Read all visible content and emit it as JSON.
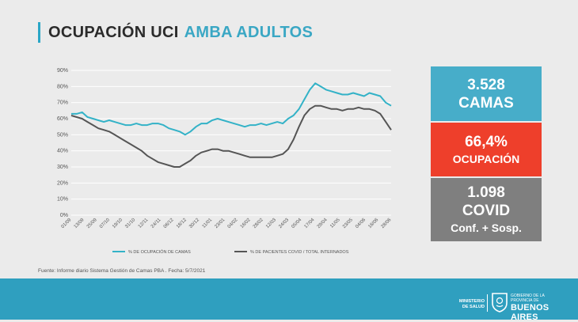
{
  "title": {
    "part1": "OCUPACIÓN UCI",
    "part2": "AMBA ADULTOS"
  },
  "stats": {
    "beds_value": "3.528",
    "beds_label": "CAMAS",
    "occupancy_value": "66,4%",
    "occupancy_label": "OCUPACIÓN",
    "covid_value": "1.098",
    "covid_label": "COVID",
    "covid_sub": "Conf. + Sosp."
  },
  "source": "Fuente: Informe diario Sistema Gestión de Camas PBA . Fecha: 5/7/2021",
  "footer": {
    "ministry": "MINISTERIO DE SALUD",
    "province_top": "GOBIERNO DE LA PROVINCIA DE",
    "province_main": "BUENOS AIRES"
  },
  "colors": {
    "camas": "#33b2c7",
    "covid": "#555555",
    "accent": "#3aa7c4",
    "red": "#ee3f2b",
    "grey_box": "#7f7f7f",
    "footer": "#2f9fbf"
  },
  "chart_data": {
    "type": "line",
    "ylim": [
      0,
      90
    ],
    "y_ticks": [
      "0%",
      "10%",
      "20%",
      "30%",
      "40%",
      "50%",
      "60%",
      "70%",
      "80%",
      "90%"
    ],
    "x_tick_labels": [
      "01/09",
      "13/09",
      "25/09",
      "07/10",
      "19/10",
      "31/10",
      "12/11",
      "24/11",
      "06/12",
      "18/12",
      "30/12",
      "11/01",
      "23/01",
      "04/02",
      "16/02",
      "28/02",
      "12/03",
      "24/03",
      "05/04",
      "17/04",
      "29/04",
      "11/05",
      "23/05",
      "04/06",
      "16/06",
      "28/06"
    ],
    "series": [
      {
        "name": "% DE OCUPACIÓN DE CAMAS",
        "values": [
          63,
          63,
          64,
          61,
          60,
          59,
          58,
          59,
          58,
          57,
          56,
          56,
          57,
          56,
          56,
          57,
          57,
          56,
          54,
          53,
          52,
          50,
          52,
          55,
          57,
          57,
          59,
          60,
          59,
          58,
          57,
          56,
          55,
          56,
          56,
          57,
          56,
          57,
          58,
          57,
          60,
          62,
          66,
          72,
          78,
          82,
          80,
          78,
          77,
          76,
          75,
          75,
          76,
          75,
          74,
          76,
          75,
          74,
          70,
          68
        ]
      },
      {
        "name": "% DE PACIENTES COVID / TOTAL INTERNADOS",
        "values": [
          62,
          61,
          60,
          58,
          56,
          54,
          53,
          52,
          50,
          48,
          46,
          44,
          42,
          40,
          37,
          35,
          33,
          32,
          31,
          30,
          30,
          32,
          34,
          37,
          39,
          40,
          41,
          41,
          40,
          40,
          39,
          38,
          37,
          36,
          36,
          36,
          36,
          36,
          37,
          38,
          41,
          47,
          55,
          62,
          66,
          68,
          68,
          67,
          66,
          66,
          65,
          66,
          66,
          67,
          66,
          66,
          65,
          63,
          58,
          53
        ]
      }
    ]
  }
}
